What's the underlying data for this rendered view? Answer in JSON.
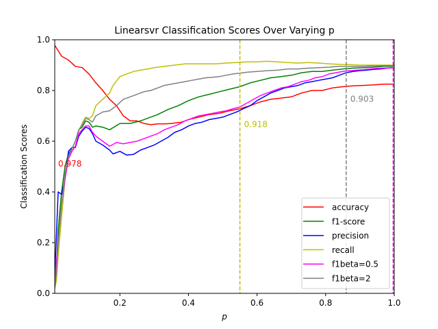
{
  "chart_data": {
    "type": "line",
    "title": "Linearsvr Classification Scores Over Varying p",
    "xlabel": "p",
    "ylabel": "Classification Scores",
    "xlim": [
      0.01,
      1.0
    ],
    "ylim": [
      0.0,
      1.0
    ],
    "x_ticks": [
      0.2,
      0.4,
      0.6,
      0.8,
      1.0
    ],
    "x_tick_labels": [
      "0.2",
      "0.4",
      "0.6",
      "0.8",
      "1.0"
    ],
    "y_ticks": [
      0.0,
      0.2,
      0.4,
      0.6,
      0.8,
      1.0
    ],
    "y_tick_labels": [
      "0.0",
      "0.2",
      "0.4",
      "0.6",
      "0.8",
      "1.0"
    ],
    "grid": false,
    "legend_position": "lower-right",
    "series": [
      {
        "name": "accuracy",
        "color": "#ff0000",
        "points": [
          [
            0.01,
            0.978
          ],
          [
            0.03,
            0.935
          ],
          [
            0.05,
            0.92
          ],
          [
            0.07,
            0.895
          ],
          [
            0.09,
            0.89
          ],
          [
            0.11,
            0.865
          ],
          [
            0.13,
            0.83
          ],
          [
            0.15,
            0.8
          ],
          [
            0.17,
            0.765
          ],
          [
            0.19,
            0.74
          ],
          [
            0.21,
            0.7
          ],
          [
            0.23,
            0.68
          ],
          [
            0.25,
            0.68
          ],
          [
            0.27,
            0.67
          ],
          [
            0.29,
            0.665
          ],
          [
            0.31,
            0.668
          ],
          [
            0.33,
            0.668
          ],
          [
            0.35,
            0.67
          ],
          [
            0.38,
            0.675
          ],
          [
            0.4,
            0.685
          ],
          [
            0.43,
            0.695
          ],
          [
            0.46,
            0.705
          ],
          [
            0.49,
            0.71
          ],
          [
            0.52,
            0.72
          ],
          [
            0.55,
            0.728
          ],
          [
            0.58,
            0.74
          ],
          [
            0.61,
            0.755
          ],
          [
            0.64,
            0.765
          ],
          [
            0.67,
            0.77
          ],
          [
            0.7,
            0.775
          ],
          [
            0.73,
            0.79
          ],
          [
            0.76,
            0.8
          ],
          [
            0.79,
            0.8
          ],
          [
            0.82,
            0.81
          ],
          [
            0.85,
            0.815
          ],
          [
            0.88,
            0.818
          ],
          [
            0.91,
            0.82
          ],
          [
            0.94,
            0.822
          ],
          [
            0.97,
            0.825
          ],
          [
            1.0,
            0.825
          ]
        ]
      },
      {
        "name": "f1-score",
        "color": "#008000",
        "points": [
          [
            0.01,
            0.02
          ],
          [
            0.015,
            0.1
          ],
          [
            0.02,
            0.25
          ],
          [
            0.03,
            0.4
          ],
          [
            0.04,
            0.5
          ],
          [
            0.05,
            0.55
          ],
          [
            0.06,
            0.57
          ],
          [
            0.07,
            0.6
          ],
          [
            0.08,
            0.645
          ],
          [
            0.09,
            0.655
          ],
          [
            0.1,
            0.68
          ],
          [
            0.11,
            0.675
          ],
          [
            0.12,
            0.655
          ],
          [
            0.13,
            0.66
          ],
          [
            0.15,
            0.655
          ],
          [
            0.17,
            0.645
          ],
          [
            0.2,
            0.67
          ],
          [
            0.23,
            0.67
          ],
          [
            0.26,
            0.68
          ],
          [
            0.28,
            0.69
          ],
          [
            0.31,
            0.705
          ],
          [
            0.34,
            0.725
          ],
          [
            0.37,
            0.74
          ],
          [
            0.4,
            0.76
          ],
          [
            0.43,
            0.775
          ],
          [
            0.46,
            0.785
          ],
          [
            0.49,
            0.795
          ],
          [
            0.52,
            0.805
          ],
          [
            0.55,
            0.815
          ],
          [
            0.58,
            0.83
          ],
          [
            0.61,
            0.84
          ],
          [
            0.64,
            0.85
          ],
          [
            0.67,
            0.855
          ],
          [
            0.7,
            0.86
          ],
          [
            0.73,
            0.87
          ],
          [
            0.76,
            0.875
          ],
          [
            0.79,
            0.875
          ],
          [
            0.82,
            0.88
          ],
          [
            0.85,
            0.885
          ],
          [
            0.88,
            0.888
          ],
          [
            0.91,
            0.89
          ],
          [
            0.94,
            0.892
          ],
          [
            0.97,
            0.895
          ],
          [
            1.0,
            0.895
          ]
        ]
      },
      {
        "name": "precision",
        "color": "#0000ff",
        "points": [
          [
            0.01,
            0.07
          ],
          [
            0.02,
            0.4
          ],
          [
            0.03,
            0.39
          ],
          [
            0.04,
            0.45
          ],
          [
            0.05,
            0.56
          ],
          [
            0.06,
            0.575
          ],
          [
            0.07,
            0.575
          ],
          [
            0.08,
            0.62
          ],
          [
            0.09,
            0.64
          ],
          [
            0.1,
            0.655
          ],
          [
            0.11,
            0.65
          ],
          [
            0.12,
            0.63
          ],
          [
            0.13,
            0.6
          ],
          [
            0.15,
            0.585
          ],
          [
            0.17,
            0.565
          ],
          [
            0.18,
            0.55
          ],
          [
            0.2,
            0.56
          ],
          [
            0.22,
            0.545
          ],
          [
            0.24,
            0.548
          ],
          [
            0.26,
            0.565
          ],
          [
            0.28,
            0.575
          ],
          [
            0.3,
            0.585
          ],
          [
            0.32,
            0.6
          ],
          [
            0.34,
            0.615
          ],
          [
            0.36,
            0.635
          ],
          [
            0.38,
            0.645
          ],
          [
            0.4,
            0.66
          ],
          [
            0.42,
            0.67
          ],
          [
            0.44,
            0.675
          ],
          [
            0.46,
            0.685
          ],
          [
            0.48,
            0.69
          ],
          [
            0.5,
            0.695
          ],
          [
            0.52,
            0.705
          ],
          [
            0.54,
            0.715
          ],
          [
            0.56,
            0.728
          ],
          [
            0.58,
            0.74
          ],
          [
            0.6,
            0.76
          ],
          [
            0.62,
            0.775
          ],
          [
            0.64,
            0.79
          ],
          [
            0.66,
            0.8
          ],
          [
            0.68,
            0.81
          ],
          [
            0.7,
            0.815
          ],
          [
            0.72,
            0.82
          ],
          [
            0.74,
            0.83
          ],
          [
            0.76,
            0.835
          ],
          [
            0.78,
            0.84
          ],
          [
            0.8,
            0.845
          ],
          [
            0.82,
            0.85
          ],
          [
            0.84,
            0.86
          ],
          [
            0.86,
            0.87
          ],
          [
            0.88,
            0.875
          ],
          [
            0.9,
            0.878
          ],
          [
            0.92,
            0.88
          ],
          [
            0.94,
            0.883
          ],
          [
            0.96,
            0.885
          ],
          [
            0.98,
            0.888
          ],
          [
            1.0,
            0.89
          ]
        ]
      },
      {
        "name": "recall",
        "color": "#bfbf00",
        "points": [
          [
            0.01,
            0.02
          ],
          [
            0.015,
            0.05
          ],
          [
            0.02,
            0.15
          ],
          [
            0.03,
            0.3
          ],
          [
            0.04,
            0.45
          ],
          [
            0.05,
            0.53
          ],
          [
            0.06,
            0.57
          ],
          [
            0.07,
            0.6
          ],
          [
            0.08,
            0.64
          ],
          [
            0.09,
            0.67
          ],
          [
            0.1,
            0.695
          ],
          [
            0.11,
            0.69
          ],
          [
            0.12,
            0.7
          ],
          [
            0.13,
            0.74
          ],
          [
            0.15,
            0.765
          ],
          [
            0.17,
            0.79
          ],
          [
            0.18,
            0.82
          ],
          [
            0.2,
            0.855
          ],
          [
            0.22,
            0.865
          ],
          [
            0.24,
            0.875
          ],
          [
            0.26,
            0.88
          ],
          [
            0.28,
            0.885
          ],
          [
            0.3,
            0.89
          ],
          [
            0.33,
            0.895
          ],
          [
            0.36,
            0.9
          ],
          [
            0.39,
            0.905
          ],
          [
            0.42,
            0.905
          ],
          [
            0.45,
            0.905
          ],
          [
            0.48,
            0.905
          ],
          [
            0.51,
            0.908
          ],
          [
            0.54,
            0.91
          ],
          [
            0.57,
            0.913
          ],
          [
            0.6,
            0.913
          ],
          [
            0.63,
            0.915
          ],
          [
            0.66,
            0.913
          ],
          [
            0.69,
            0.91
          ],
          [
            0.72,
            0.908
          ],
          [
            0.75,
            0.91
          ],
          [
            0.78,
            0.908
          ],
          [
            0.81,
            0.905
          ],
          [
            0.84,
            0.903
          ],
          [
            0.87,
            0.902
          ],
          [
            0.9,
            0.9
          ],
          [
            0.93,
            0.9
          ],
          [
            0.96,
            0.9
          ],
          [
            1.0,
            0.9
          ]
        ]
      },
      {
        "name": "f1beta=0.5",
        "color": "#ff00ff",
        "points": [
          [
            0.01,
            0.05
          ],
          [
            0.02,
            0.2
          ],
          [
            0.03,
            0.35
          ],
          [
            0.04,
            0.45
          ],
          [
            0.05,
            0.53
          ],
          [
            0.06,
            0.56
          ],
          [
            0.07,
            0.58
          ],
          [
            0.08,
            0.63
          ],
          [
            0.09,
            0.645
          ],
          [
            0.1,
            0.66
          ],
          [
            0.11,
            0.66
          ],
          [
            0.12,
            0.635
          ],
          [
            0.13,
            0.62
          ],
          [
            0.15,
            0.6
          ],
          [
            0.17,
            0.58
          ],
          [
            0.19,
            0.595
          ],
          [
            0.21,
            0.59
          ],
          [
            0.23,
            0.595
          ],
          [
            0.25,
            0.6
          ],
          [
            0.27,
            0.61
          ],
          [
            0.29,
            0.62
          ],
          [
            0.31,
            0.63
          ],
          [
            0.33,
            0.645
          ],
          [
            0.35,
            0.655
          ],
          [
            0.37,
            0.665
          ],
          [
            0.39,
            0.68
          ],
          [
            0.41,
            0.69
          ],
          [
            0.43,
            0.7
          ],
          [
            0.45,
            0.705
          ],
          [
            0.47,
            0.71
          ],
          [
            0.49,
            0.715
          ],
          [
            0.51,
            0.72
          ],
          [
            0.53,
            0.728
          ],
          [
            0.55,
            0.735
          ],
          [
            0.57,
            0.75
          ],
          [
            0.59,
            0.765
          ],
          [
            0.61,
            0.78
          ],
          [
            0.63,
            0.79
          ],
          [
            0.65,
            0.8
          ],
          [
            0.67,
            0.81
          ],
          [
            0.69,
            0.815
          ],
          [
            0.71,
            0.825
          ],
          [
            0.73,
            0.835
          ],
          [
            0.75,
            0.84
          ],
          [
            0.77,
            0.85
          ],
          [
            0.79,
            0.855
          ],
          [
            0.81,
            0.865
          ],
          [
            0.83,
            0.87
          ],
          [
            0.85,
            0.875
          ],
          [
            0.87,
            0.878
          ],
          [
            0.89,
            0.88
          ],
          [
            0.91,
            0.882
          ],
          [
            0.93,
            0.885
          ],
          [
            0.95,
            0.887
          ],
          [
            0.97,
            0.888
          ],
          [
            1.0,
            0.89
          ]
        ]
      },
      {
        "name": "f1beta=2",
        "color": "#808080",
        "points": [
          [
            0.01,
            0.02
          ],
          [
            0.015,
            0.08
          ],
          [
            0.02,
            0.2
          ],
          [
            0.03,
            0.35
          ],
          [
            0.04,
            0.47
          ],
          [
            0.05,
            0.54
          ],
          [
            0.06,
            0.57
          ],
          [
            0.07,
            0.6
          ],
          [
            0.08,
            0.645
          ],
          [
            0.09,
            0.665
          ],
          [
            0.1,
            0.69
          ],
          [
            0.11,
            0.685
          ],
          [
            0.12,
            0.675
          ],
          [
            0.13,
            0.7
          ],
          [
            0.15,
            0.715
          ],
          [
            0.17,
            0.72
          ],
          [
            0.19,
            0.74
          ],
          [
            0.21,
            0.765
          ],
          [
            0.23,
            0.775
          ],
          [
            0.25,
            0.785
          ],
          [
            0.27,
            0.795
          ],
          [
            0.29,
            0.8
          ],
          [
            0.31,
            0.81
          ],
          [
            0.33,
            0.82
          ],
          [
            0.35,
            0.825
          ],
          [
            0.37,
            0.83
          ],
          [
            0.39,
            0.835
          ],
          [
            0.41,
            0.84
          ],
          [
            0.43,
            0.845
          ],
          [
            0.45,
            0.85
          ],
          [
            0.47,
            0.852
          ],
          [
            0.49,
            0.855
          ],
          [
            0.51,
            0.86
          ],
          [
            0.53,
            0.865
          ],
          [
            0.55,
            0.868
          ],
          [
            0.57,
            0.872
          ],
          [
            0.6,
            0.875
          ],
          [
            0.63,
            0.878
          ],
          [
            0.66,
            0.88
          ],
          [
            0.69,
            0.885
          ],
          [
            0.72,
            0.885
          ],
          [
            0.75,
            0.888
          ],
          [
            0.78,
            0.89
          ],
          [
            0.81,
            0.892
          ],
          [
            0.84,
            0.895
          ],
          [
            0.86,
            0.895
          ],
          [
            0.88,
            0.895
          ],
          [
            0.91,
            0.895
          ],
          [
            0.94,
            0.897
          ],
          [
            0.97,
            0.898
          ],
          [
            1.0,
            0.898
          ]
        ]
      }
    ],
    "vlines": [
      {
        "name": "recall-threshold",
        "x": 0.55,
        "color": "#bfbf00",
        "style": "dashed"
      },
      {
        "name": "f1beta2-threshold",
        "x": 0.86,
        "color": "#808080",
        "style": "dashed"
      },
      {
        "name": "f1beta05-threshold",
        "x": 0.997,
        "color": "#ff00ff",
        "style": "dashed"
      }
    ],
    "annotations": [
      {
        "name": "accuracy-max-label",
        "text": "0.978",
        "x": 0.02,
        "y": 0.5,
        "color": "#ff0000"
      },
      {
        "name": "recall-max-label",
        "text": "0.918",
        "x": 0.562,
        "y": 0.655,
        "color": "#bfbf00"
      },
      {
        "name": "f1beta2-max-label",
        "text": "0.903",
        "x": 0.872,
        "y": 0.755,
        "color": "#808080"
      }
    ]
  }
}
